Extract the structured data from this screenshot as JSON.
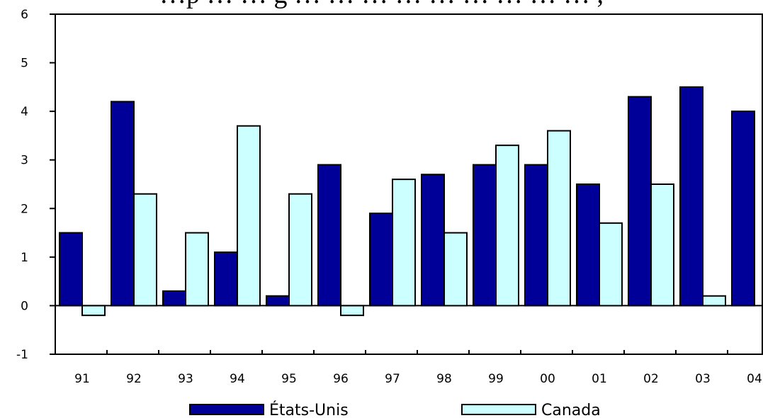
{
  "chart_data": {
    "type": "bar",
    "title": "…p … … g … … … … … … … … … ,",
    "categories": [
      "91",
      "92",
      "93",
      "94",
      "95",
      "96",
      "97",
      "98",
      "99",
      "00",
      "01",
      "02",
      "03",
      "04"
    ],
    "series": [
      {
        "name": "États-Unis",
        "color": "#000099",
        "values": [
          1.5,
          4.2,
          0.3,
          1.1,
          0.2,
          2.9,
          1.9,
          2.7,
          2.9,
          2.9,
          2.5,
          4.3,
          4.5,
          4.0
        ]
      },
      {
        "name": "Canada",
        "color": "#ccffff",
        "values": [
          -0.2,
          2.3,
          1.5,
          3.7,
          2.3,
          -0.2,
          2.6,
          1.5,
          3.3,
          3.6,
          1.7,
          2.5,
          0.2,
          null
        ]
      }
    ],
    "y_ticks": [
      "-1",
      "0",
      "1",
      "2",
      "3",
      "4",
      "5",
      "6"
    ],
    "ylim": [
      -1,
      6
    ],
    "grid": false,
    "legend_position": "bottom"
  }
}
